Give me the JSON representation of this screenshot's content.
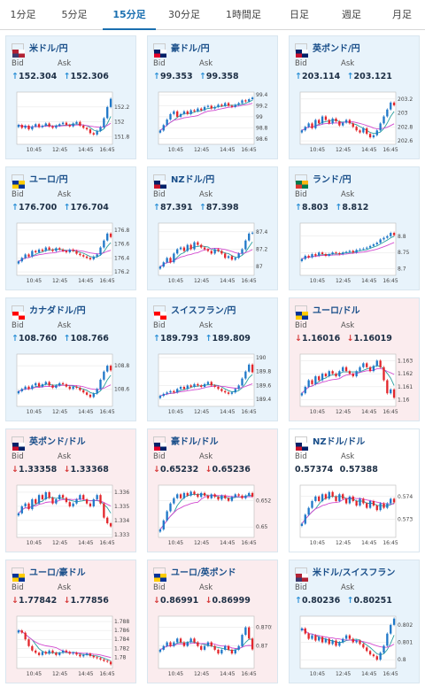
{
  "tabs": [
    {
      "label": "1分足",
      "active": false
    },
    {
      "label": "5分足",
      "active": false
    },
    {
      "label": "15分足",
      "active": true
    },
    {
      "label": "30分足",
      "active": false
    },
    {
      "label": "1時間足",
      "active": false
    },
    {
      "label": "日足",
      "active": false
    },
    {
      "label": "週足",
      "active": false
    },
    {
      "label": "月足",
      "active": false
    }
  ],
  "bid_label": "Bid",
  "ask_label": "Ask",
  "colors": {
    "up_bg": "#e8f3fb",
    "down_bg": "#fbecee",
    "up_arrow": "#2a8fd6",
    "down_arrow": "#d63a3a",
    "candle_up": "#1f78c8",
    "candle_down": "#e3262b",
    "ma_short": "#2aa0a0",
    "ma_long": "#d24ad0"
  },
  "cards": [
    {
      "title": "米ドル/円",
      "flag": "us-jp",
      "state": "up",
      "bid_arrow": "↑",
      "bid": "152.304",
      "ask_arrow": "↑",
      "ask": "152.306",
      "x_ticks": [
        "10:45",
        "12:45",
        "14:45",
        "16:45"
      ],
      "y_ticks": [
        "152.2",
        "152",
        "151.8"
      ],
      "y_range": [
        151.7,
        152.4
      ],
      "chart_data": {
        "type": "candlestick",
        "closes": [
          151.96,
          151.92,
          151.95,
          151.9,
          151.94,
          151.97,
          151.93,
          151.95,
          151.98,
          151.94,
          151.92,
          151.95,
          151.97,
          151.99,
          151.96,
          151.94,
          151.98,
          152.0,
          151.95,
          151.92,
          151.9,
          151.85,
          151.83,
          151.88,
          151.93,
          152.05,
          152.2,
          152.31
        ]
      }
    },
    {
      "title": "豪ドル/円",
      "flag": "au-jp",
      "state": "up",
      "bid_arrow": "↑",
      "bid": "99.353",
      "ask_arrow": "↑",
      "ask": "99.358",
      "x_ticks": [
        "10:45",
        "12:45",
        "14:45",
        "16:45"
      ],
      "y_ticks": [
        "99.4",
        "99.2",
        "99",
        "98.8",
        "98.6"
      ],
      "y_range": [
        98.5,
        99.45
      ],
      "chart_data": {
        "type": "candlestick",
        "closes": [
          98.75,
          98.85,
          98.95,
          99.05,
          99.1,
          99.0,
          99.05,
          99.1,
          99.05,
          99.12,
          99.1,
          99.15,
          99.12,
          99.18,
          99.2,
          99.15,
          99.18,
          99.22,
          99.2,
          99.25,
          99.2,
          99.18,
          99.22,
          99.25,
          99.3,
          99.28,
          99.32,
          99.35
        ]
      }
    },
    {
      "title": "英ポンド/円",
      "flag": "gb-jp",
      "state": "up",
      "bid_arrow": "↑",
      "bid": "203.114",
      "ask_arrow": "↑",
      "ask": "203.121",
      "x_ticks": [
        "10:45",
        "12:45",
        "14:45",
        "16:45"
      ],
      "y_ticks": [
        "203.2",
        "203",
        "202.8",
        "202.6"
      ],
      "y_range": [
        202.55,
        203.3
      ],
      "chart_data": {
        "type": "candlestick",
        "closes": [
          202.75,
          202.8,
          202.85,
          202.78,
          202.9,
          202.85,
          202.95,
          202.9,
          202.85,
          202.92,
          202.88,
          202.82,
          202.86,
          202.9,
          202.85,
          202.8,
          202.75,
          202.72,
          202.78,
          202.7,
          202.65,
          202.68,
          202.75,
          202.85,
          202.95,
          203.05,
          203.15,
          203.11
        ]
      }
    },
    {
      "title": "ユーロ/円",
      "flag": "eu-jp",
      "state": "up",
      "bid_arrow": "↑",
      "bid": "176.700",
      "ask_arrow": "↑",
      "ask": "176.704",
      "x_ticks": [
        "10:45",
        "12:45",
        "14:45",
        "16:45"
      ],
      "y_ticks": [
        "176.8",
        "176.6",
        "176.4",
        "176.2"
      ],
      "y_range": [
        176.15,
        176.9
      ],
      "chart_data": {
        "type": "candlestick",
        "closes": [
          176.35,
          176.4,
          176.45,
          176.42,
          176.5,
          176.48,
          176.52,
          176.5,
          176.55,
          176.52,
          176.5,
          176.54,
          176.52,
          176.5,
          176.48,
          176.52,
          176.5,
          176.46,
          176.44,
          176.42,
          176.4,
          176.38,
          176.42,
          176.45,
          176.55,
          176.65,
          176.75,
          176.7
        ]
      }
    },
    {
      "title": "NZドル/円",
      "flag": "nz-jp",
      "state": "up",
      "bid_arrow": "↑",
      "bid": "87.391",
      "ask_arrow": "↑",
      "ask": "87.398",
      "x_ticks": [
        "10:45",
        "12:45",
        "14:45",
        "16:45"
      ],
      "y_ticks": [
        "87.4",
        "87.2",
        "87"
      ],
      "y_range": [
        86.9,
        87.5
      ],
      "chart_data": {
        "type": "candlestick",
        "closes": [
          87.0,
          87.05,
          87.1,
          87.05,
          87.15,
          87.2,
          87.22,
          87.18,
          87.25,
          87.2,
          87.28,
          87.25,
          87.22,
          87.2,
          87.18,
          87.15,
          87.2,
          87.18,
          87.15,
          87.1,
          87.12,
          87.08,
          87.1,
          87.15,
          87.2,
          87.3,
          87.38,
          87.39
        ]
      }
    },
    {
      "title": "ランド/円",
      "flag": "za-jp",
      "state": "up",
      "bid_arrow": "↑",
      "bid": "8.803",
      "ask_arrow": "↑",
      "ask": "8.812",
      "x_ticks": [
        "10:45",
        "12:45",
        "14:45",
        "16:45"
      ],
      "y_ticks": [
        "8.8",
        "8.75",
        "8.7"
      ],
      "y_range": [
        8.68,
        8.84
      ],
      "chart_data": {
        "type": "candlestick",
        "closes": [
          8.73,
          8.74,
          8.735,
          8.745,
          8.74,
          8.75,
          8.745,
          8.74,
          8.745,
          8.75,
          8.748,
          8.745,
          8.75,
          8.752,
          8.755,
          8.75,
          8.758,
          8.76,
          8.762,
          8.765,
          8.77,
          8.775,
          8.78,
          8.79,
          8.795,
          8.8,
          8.81,
          8.803
        ]
      }
    },
    {
      "title": "カナダドル/円",
      "flag": "ca-jp",
      "state": "up",
      "bid_arrow": "↑",
      "bid": "108.760",
      "ask_arrow": "↑",
      "ask": "108.766",
      "x_ticks": [
        "10:45",
        "12:45",
        "14:45",
        "16:45"
      ],
      "y_ticks": [
        "108.8",
        "108.6"
      ],
      "y_range": [
        108.45,
        108.9
      ],
      "chart_data": {
        "type": "candlestick",
        "closes": [
          108.58,
          108.6,
          108.62,
          108.6,
          108.63,
          108.65,
          108.62,
          108.64,
          108.66,
          108.63,
          108.61,
          108.63,
          108.65,
          108.64,
          108.62,
          108.6,
          108.62,
          108.61,
          108.59,
          108.57,
          108.55,
          108.53,
          108.56,
          108.6,
          108.68,
          108.75,
          108.8,
          108.76
        ]
      }
    },
    {
      "title": "スイスフラン/円",
      "flag": "ch-jp",
      "state": "up",
      "bid_arrow": "↑",
      "bid": "189.793",
      "ask_arrow": "↑",
      "ask": "189.809",
      "x_ticks": [
        "10:45",
        "12:45",
        "14:45",
        "16:45"
      ],
      "y_ticks": [
        "190",
        "189.8",
        "189.6",
        "189.4"
      ],
      "y_range": [
        189.3,
        190.05
      ],
      "chart_data": {
        "type": "candlestick",
        "closes": [
          189.45,
          189.48,
          189.5,
          189.52,
          189.5,
          189.55,
          189.58,
          189.55,
          189.6,
          189.58,
          189.62,
          189.6,
          189.58,
          189.62,
          189.65,
          189.6,
          189.58,
          189.55,
          189.52,
          189.5,
          189.48,
          189.5,
          189.55,
          189.6,
          189.7,
          189.8,
          189.9,
          189.79
        ]
      }
    },
    {
      "title": "ユーロ/ドル",
      "flag": "eu-us",
      "state": "down",
      "bid_arrow": "↓",
      "bid": "1.16016",
      "ask_arrow": "↓",
      "ask": "1.16019",
      "x_ticks": [
        "10:45",
        "12:45",
        "14:45",
        "16:45"
      ],
      "y_ticks": [
        "1.163",
        "1.162",
        "1.161",
        "1.16"
      ],
      "y_range": [
        1.1595,
        1.1635
      ],
      "chart_data": {
        "type": "candlestick",
        "closes": [
          1.1605,
          1.161,
          1.1615,
          1.1612,
          1.1618,
          1.1615,
          1.162,
          1.1618,
          1.1622,
          1.162,
          1.1618,
          1.1622,
          1.1625,
          1.1622,
          1.162,
          1.1618,
          1.1622,
          1.1625,
          1.1628,
          1.1625,
          1.1622,
          1.1626,
          1.163,
          1.1625,
          1.1615,
          1.1605,
          1.1608,
          1.16016
        ]
      }
    },
    {
      "title": "英ポンド/ドル",
      "flag": "gb-us",
      "state": "down",
      "bid_arrow": "↓",
      "bid": "1.33358",
      "ask_arrow": "↓",
      "ask": "1.33368",
      "x_ticks": [
        "10:45",
        "12:45",
        "14:45",
        "16:45"
      ],
      "y_ticks": [
        "1.336",
        "1.335",
        "1.334",
        "1.333"
      ],
      "y_range": [
        1.3328,
        1.3365
      ],
      "chart_data": {
        "type": "candlestick",
        "closes": [
          1.3345,
          1.335,
          1.3352,
          1.3348,
          1.3355,
          1.3352,
          1.3358,
          1.3355,
          1.336,
          1.3356,
          1.3352,
          1.3355,
          1.3358,
          1.3356,
          1.3353,
          1.335,
          1.3352,
          1.3355,
          1.3358,
          1.3355,
          1.3352,
          1.335,
          1.3355,
          1.3358,
          1.3352,
          1.3342,
          1.3338,
          1.33358
        ]
      }
    },
    {
      "title": "豪ドル/ドル",
      "flag": "au-us",
      "state": "down",
      "bid_arrow": "↓",
      "bid": "0.65232",
      "ask_arrow": "↓",
      "ask": "0.65236",
      "x_ticks": [
        "10:45",
        "12:45",
        "14:45",
        "16:45"
      ],
      "y_ticks": [
        "0.652",
        "0.65"
      ],
      "y_range": [
        0.6492,
        0.6532
      ],
      "chart_data": {
        "type": "candlestick",
        "closes": [
          0.6498,
          0.6505,
          0.6512,
          0.6518,
          0.6522,
          0.6525,
          0.6522,
          0.6526,
          0.6524,
          0.6527,
          0.6525,
          0.6523,
          0.6526,
          0.6524,
          0.6522,
          0.6525,
          0.6523,
          0.6521,
          0.6524,
          0.6522,
          0.652,
          0.6523,
          0.6525,
          0.6524,
          0.6522,
          0.6524,
          0.6526,
          0.65232
        ]
      }
    },
    {
      "title": "NZドル/ドル",
      "flag": "nz-us",
      "state": "flat",
      "bid_arrow": "",
      "bid": "0.57374",
      "ask_arrow": "",
      "ask": "0.57388",
      "x_ticks": [
        "10:45",
        "12:45",
        "14:45",
        "16:45"
      ],
      "y_ticks": [
        "0.574",
        "0.573"
      ],
      "y_range": [
        0.5722,
        0.5745
      ],
      "chart_data": {
        "type": "candlestick",
        "closes": [
          0.5728,
          0.5732,
          0.5735,
          0.5738,
          0.574,
          0.5738,
          0.5741,
          0.5739,
          0.5742,
          0.574,
          0.5738,
          0.5741,
          0.5739,
          0.5737,
          0.574,
          0.5738,
          0.5736,
          0.5739,
          0.5737,
          0.5735,
          0.5738,
          0.5736,
          0.5734,
          0.5737,
          0.5735,
          0.5737,
          0.5739,
          0.57374
        ]
      }
    },
    {
      "title": "ユーロ/豪ドル",
      "flag": "eu-au",
      "state": "down",
      "bid_arrow": "↓",
      "bid": "1.77842",
      "ask_arrow": "↓",
      "ask": "1.77856",
      "x_ticks": [
        "10:45",
        "12:45",
        "14:45",
        "16:45"
      ],
      "y_ticks": [
        "1.788",
        "1.786",
        "1.784",
        "1.782",
        "1.78"
      ],
      "y_range": [
        1.7775,
        1.7892
      ],
      "chart_data": {
        "type": "candlestick",
        "closes": [
          1.786,
          1.7855,
          1.784,
          1.7825,
          1.7815,
          1.781,
          1.7805,
          1.7812,
          1.7808,
          1.7815,
          1.781,
          1.7805,
          1.781,
          1.7815,
          1.7812,
          1.7808,
          1.781,
          1.7806,
          1.7802,
          1.7805,
          1.7808,
          1.7803,
          1.78,
          1.7798,
          1.7795,
          1.7792,
          1.779,
          1.77842
        ]
      }
    },
    {
      "title": "ユーロ/英ポンド",
      "flag": "eu-gb",
      "state": "down",
      "bid_arrow": "↓",
      "bid": "0.86991",
      "ask_arrow": "↓",
      "ask": "0.86999",
      "x_ticks": [
        "10:45",
        "12:45",
        "14:45",
        "16:45"
      ],
      "y_ticks": [
        "0.8705",
        "0.87"
      ],
      "y_range": [
        0.8694,
        0.8708
      ],
      "chart_data": {
        "type": "candlestick",
        "closes": [
          0.8699,
          0.87,
          0.8701,
          0.87,
          0.8701,
          0.8702,
          0.8701,
          0.87,
          0.8701,
          0.8702,
          0.8701,
          0.87,
          0.8699,
          0.87,
          0.8701,
          0.87,
          0.8699,
          0.8698,
          0.8699,
          0.87,
          0.8699,
          0.8698,
          0.8699,
          0.87,
          0.8703,
          0.8705,
          0.8702,
          0.86991
        ]
      }
    },
    {
      "title": "米ドル/スイスフラン",
      "flag": "us-ch",
      "state": "up",
      "bid_arrow": "↑",
      "bid": "0.80236",
      "ask_arrow": "↑",
      "ask": "0.80251",
      "x_ticks": [
        "10:45",
        "12:45",
        "14:45",
        "16:45"
      ],
      "y_ticks": [
        "0.802",
        "0.801",
        "0.8"
      ],
      "y_range": [
        0.7995,
        0.8025
      ],
      "chart_data": {
        "type": "candlestick",
        "closes": [
          0.8018,
          0.8015,
          0.8012,
          0.8014,
          0.8011,
          0.8013,
          0.801,
          0.8012,
          0.8009,
          0.8011,
          0.8008,
          0.801,
          0.8012,
          0.8014,
          0.8012,
          0.801,
          0.8011,
          0.8009,
          0.8007,
          0.8005,
          0.8003,
          0.8002,
          0.8,
          0.8004,
          0.8008,
          0.8015,
          0.802,
          0.80236
        ]
      }
    }
  ]
}
